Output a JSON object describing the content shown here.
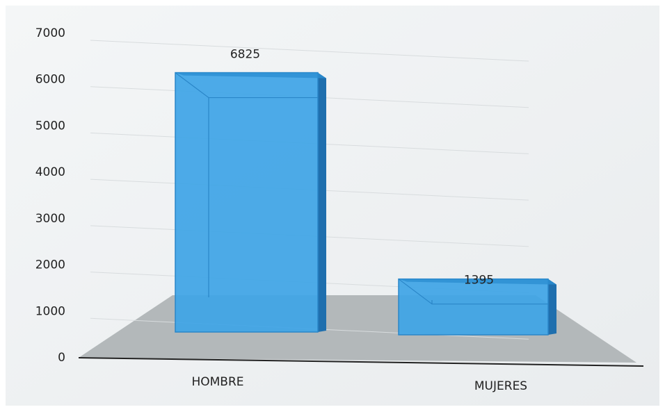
{
  "chart_data": {
    "type": "bar3d",
    "categories": [
      "HOMBRE",
      "MUJERES"
    ],
    "values": [
      6825,
      1395
    ],
    "color": "#3ea4e6",
    "ylim": [
      0,
      7000
    ],
    "yticks": [
      0,
      1000,
      2000,
      3000,
      4000,
      5000,
      6000,
      7000
    ],
    "grid": true
  }
}
